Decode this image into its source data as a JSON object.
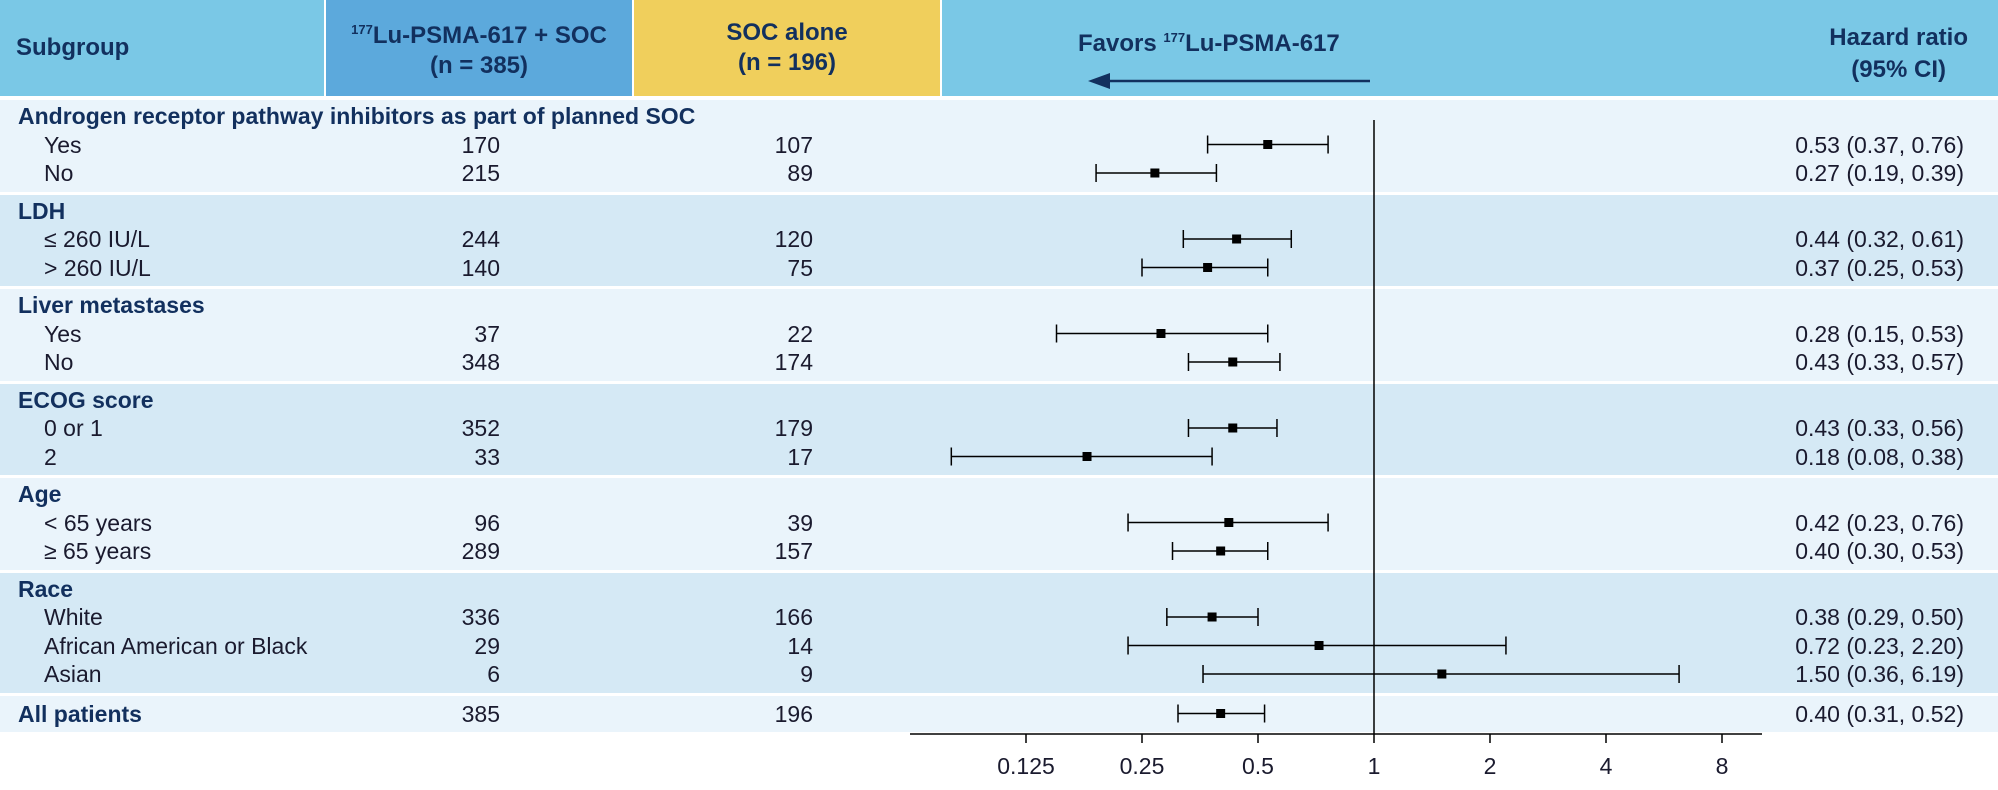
{
  "header": {
    "subgroup": "Subgroup",
    "arm1_sup": "177",
    "arm1_name": "Lu-PSMA-617 + SOC",
    "arm1_n": "(n = 385)",
    "arm2_name": "SOC alone",
    "arm2_n": "(n = 196)",
    "favors_prefix": "Favors ",
    "favors_sup": "177",
    "favors_name": "Lu-PSMA-617",
    "hr_title": "Hazard ratio",
    "hr_ci": "(95% CI)"
  },
  "chart_data": {
    "type": "forest",
    "x_scale": "log2",
    "xlim": [
      0.0625,
      12
    ],
    "reference_line": 1,
    "x_ticks": [
      "0.125",
      "0.25",
      "0.5",
      "1",
      "2",
      "4",
      "8"
    ],
    "groups": [
      {
        "title": "Androgen receptor pathway inhibitors as part of planned SOC",
        "rows": [
          {
            "label": "Yes",
            "n1": "170",
            "n2": "107",
            "hr": 0.53,
            "lo": 0.37,
            "hi": 0.76,
            "text": "0.53 (0.37, 0.76)"
          },
          {
            "label": "No",
            "n1": "215",
            "n2": "89",
            "hr": 0.27,
            "lo": 0.19,
            "hi": 0.39,
            "text": "0.27 (0.19, 0.39)"
          }
        ]
      },
      {
        "title": "LDH",
        "rows": [
          {
            "label": "≤ 260 IU/L",
            "n1": "244",
            "n2": "120",
            "hr": 0.44,
            "lo": 0.32,
            "hi": 0.61,
            "text": "0.44 (0.32, 0.61)"
          },
          {
            "label": "> 260 IU/L",
            "n1": "140",
            "n2": "75",
            "hr": 0.37,
            "lo": 0.25,
            "hi": 0.53,
            "text": "0.37 (0.25, 0.53)"
          }
        ]
      },
      {
        "title": "Liver metastases",
        "rows": [
          {
            "label": "Yes",
            "n1": "37",
            "n2": "22",
            "hr": 0.28,
            "lo": 0.15,
            "hi": 0.53,
            "text": "0.28 (0.15, 0.53)"
          },
          {
            "label": "No",
            "n1": "348",
            "n2": "174",
            "hr": 0.43,
            "lo": 0.33,
            "hi": 0.57,
            "text": "0.43 (0.33, 0.57)"
          }
        ]
      },
      {
        "title": "ECOG score",
        "rows": [
          {
            "label": "0 or 1",
            "n1": "352",
            "n2": "179",
            "hr": 0.43,
            "lo": 0.33,
            "hi": 0.56,
            "text": "0.43 (0.33, 0.56)"
          },
          {
            "label": "2",
            "n1": "33",
            "n2": "17",
            "hr": 0.18,
            "lo": 0.08,
            "hi": 0.38,
            "text": "0.18 (0.08, 0.38)"
          }
        ]
      },
      {
        "title": "Age",
        "rows": [
          {
            "label": "< 65 years",
            "n1": "96",
            "n2": "39",
            "hr": 0.42,
            "lo": 0.23,
            "hi": 0.76,
            "text": "0.42 (0.23, 0.76)"
          },
          {
            "label": "≥ 65 years",
            "n1": "289",
            "n2": "157",
            "hr": 0.4,
            "lo": 0.3,
            "hi": 0.53,
            "text": "0.40 (0.30, 0.53)"
          }
        ]
      },
      {
        "title": "Race",
        "rows": [
          {
            "label": "White",
            "n1": "336",
            "n2": "166",
            "hr": 0.38,
            "lo": 0.29,
            "hi": 0.5,
            "text": "0.38 (0.29, 0.50)"
          },
          {
            "label": "African American or Black",
            "n1": "29",
            "n2": "14",
            "hr": 0.72,
            "lo": 0.23,
            "hi": 2.2,
            "text": "0.72 (0.23, 2.20)"
          },
          {
            "label": "Asian",
            "n1": "6",
            "n2": "9",
            "hr": 1.5,
            "lo": 0.36,
            "hi": 6.19,
            "text": "1.50 (0.36, 6.19)"
          }
        ]
      }
    ],
    "overall": {
      "label": "All patients",
      "n1": "385",
      "n2": "196",
      "hr": 0.4,
      "lo": 0.31,
      "hi": 0.52,
      "text": "0.40 (0.31, 0.52)"
    }
  }
}
